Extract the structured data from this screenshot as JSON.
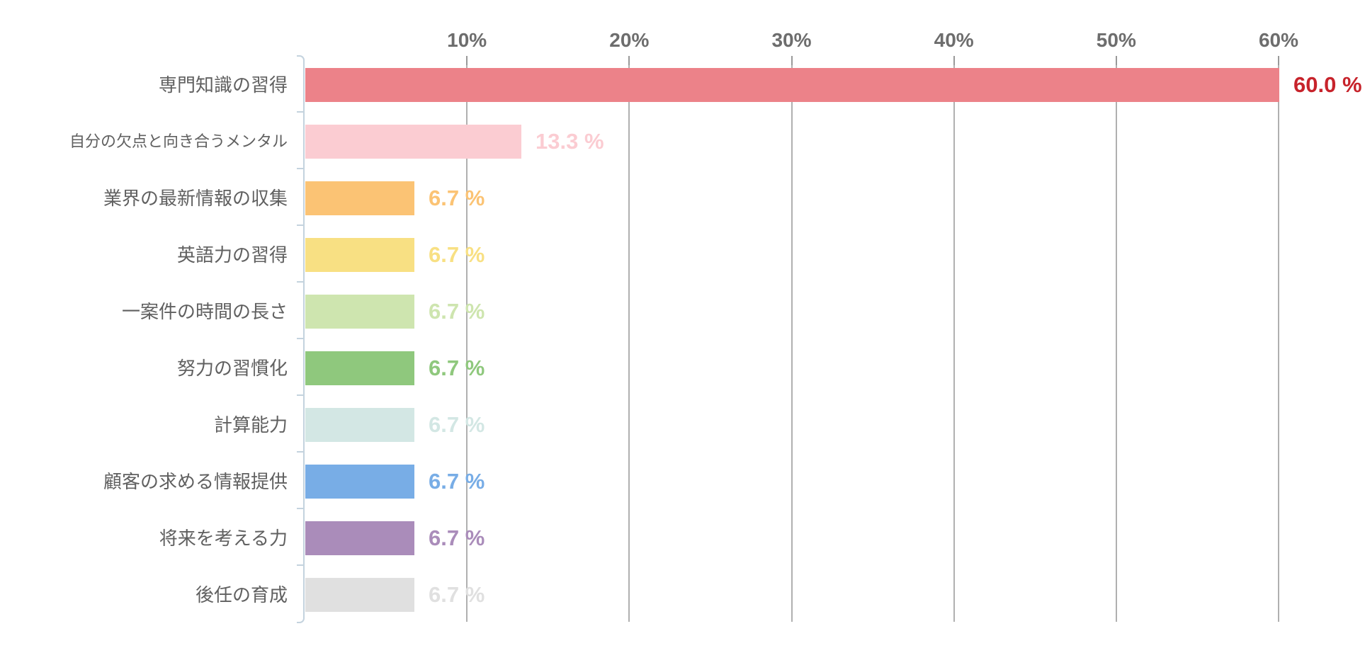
{
  "chart_data": {
    "type": "bar",
    "orientation": "horizontal",
    "title": "",
    "xlabel": "",
    "ylabel": "",
    "legend": "none",
    "grid": true,
    "x_axis": {
      "position": "top",
      "unit": "%",
      "min": 0,
      "max": 60,
      "tick_step": 10,
      "tick_labels": [
        "10%",
        "20%",
        "30%",
        "40%",
        "50%",
        "60%"
      ]
    },
    "categories": [
      "専門知識の習得",
      "自分の欠点と向き合うメンタル",
      "業界の最新情報の収集",
      "英語力の習得",
      "一案件の時間の長さ",
      "努力の習慣化",
      "計算能力",
      "顧客の求める情報提供",
      "将来を考える力",
      "後任の育成"
    ],
    "values": [
      60.0,
      13.3,
      6.7,
      6.7,
      6.7,
      6.7,
      6.7,
      6.7,
      6.7,
      6.7
    ],
    "value_labels": [
      "60.0 %",
      "13.3 %",
      "6.7 %",
      "6.7 %",
      "6.7 %",
      "6.7 %",
      "6.7 %",
      "6.7 %",
      "6.7 %",
      "6.7 %"
    ],
    "bar_colors": [
      "#ec8289",
      "#fbccd2",
      "#fbc374",
      "#f8e083",
      "#cee5af",
      "#8fc87d",
      "#d3e7e4",
      "#78ade6",
      "#aa8cba",
      "#e0e0e0"
    ],
    "value_label_colors": [
      "#c7232b",
      "#fbccd2",
      "#fbc374",
      "#f8e083",
      "#cee5af",
      "#8fc87d",
      "#d3e7e4",
      "#78ade6",
      "#aa8cba",
      "#e0e0e0"
    ],
    "colors": {
      "axis_bracket": "#c4d3de",
      "top_tick": "#999999",
      "gridline": "#b0b0b0",
      "pct_label": "#6d6d6d",
      "category_label": "#606060",
      "background": "#ffffff"
    }
  }
}
